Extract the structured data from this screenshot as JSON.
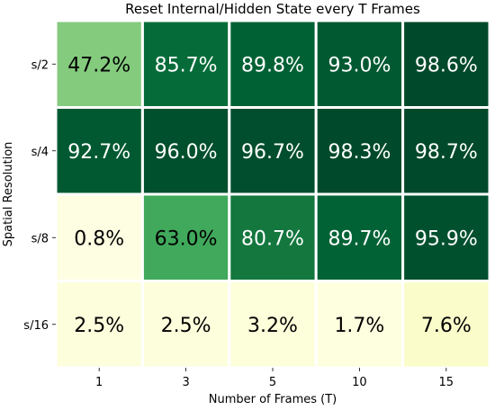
{
  "chart_data": {
    "type": "heatmap",
    "title": "Reset Internal/Hidden State every T Frames",
    "xlabel": "Number of Frames (T)",
    "ylabel": "Spatial Resolution",
    "x_categories": [
      "1",
      "3",
      "5",
      "10",
      "15"
    ],
    "y_categories": [
      "s/2",
      "s/4",
      "s/8",
      "s/16"
    ],
    "values": [
      [
        47.2,
        85.7,
        89.8,
        93.0,
        98.6
      ],
      [
        92.7,
        96.0,
        96.7,
        98.3,
        98.7
      ],
      [
        0.8,
        63.0,
        80.7,
        89.7,
        95.9
      ],
      [
        2.5,
        2.5,
        3.2,
        1.7,
        7.6
      ]
    ],
    "value_labels": [
      [
        "47.2%",
        "85.7%",
        "89.8%",
        "93.0%",
        "98.6%"
      ],
      [
        "92.7%",
        "96.0%",
        "96.7%",
        "98.3%",
        "98.7%"
      ],
      [
        "0.8%",
        "63.0%",
        "80.7%",
        "89.7%",
        "95.9%"
      ],
      [
        "2.5%",
        "2.5%",
        "3.2%",
        "1.7%",
        "7.6%"
      ]
    ],
    "colormap": "YlGn",
    "vmin": 0,
    "vmax": 100,
    "colorbar": false,
    "grid": false
  }
}
